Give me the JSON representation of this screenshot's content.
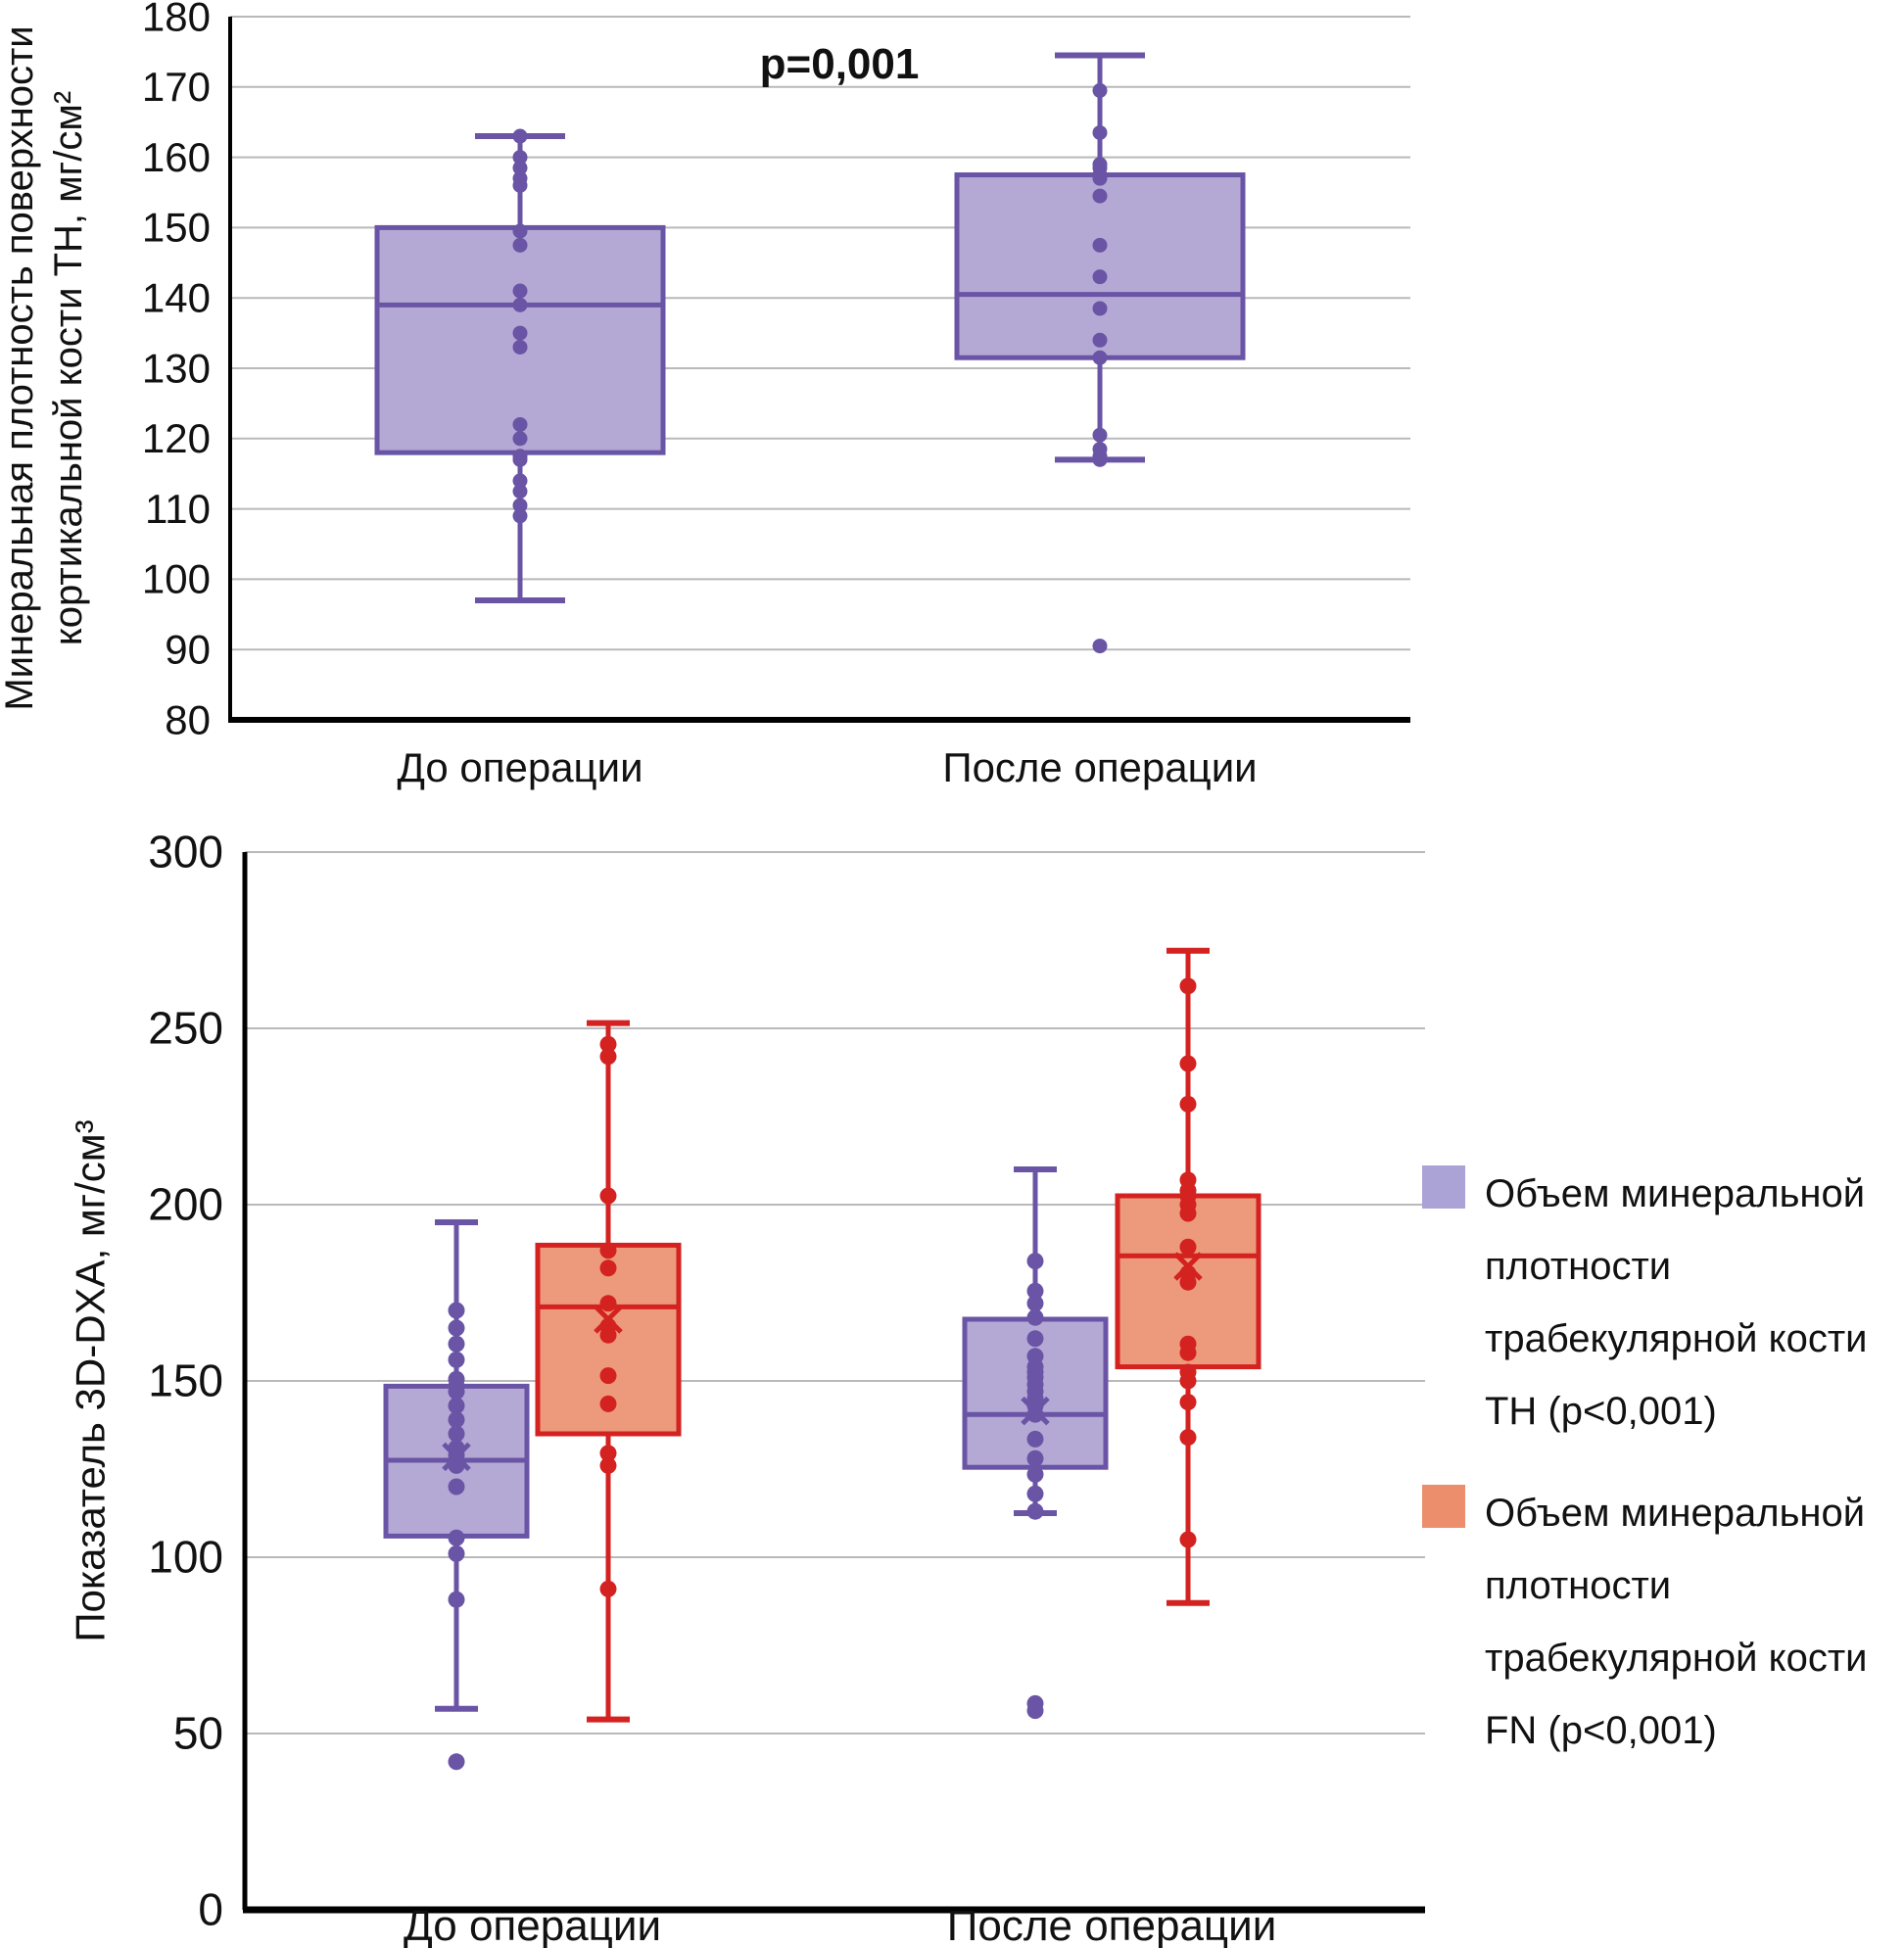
{
  "page": {
    "background": "#ffffff"
  },
  "chart_data": [
    {
      "type": "boxplot",
      "title": "",
      "ylabel_lines": [
        "Минеральная плотность поверхности",
        "кортикальной кости TH, мг/см²"
      ],
      "ylim": [
        80,
        180
      ],
      "ytick_step": 10,
      "grid": true,
      "annotation": "p=0,001",
      "categories": [
        "До операции",
        "После операции"
      ],
      "legend_position": "none",
      "series": [
        {
          "name": "Минеральная плотность поверхности кортикальной кости TH",
          "fill": "#b4a9d5",
          "stroke": "#6a54a5",
          "boxes": [
            {
              "category": "До операции",
              "whisker_low": 97,
              "q1": 118,
              "median": 139,
              "q3": 150,
              "whisker_high": 163,
              "points": [
                163,
                160,
                158.5,
                157,
                156,
                149.5,
                147.5,
                141,
                139,
                135,
                133,
                122,
                120,
                117.5,
                117,
                114,
                112.5,
                110.5,
                109
              ],
              "outliers": []
            },
            {
              "category": "После операции",
              "whisker_low": 117,
              "q1": 131.5,
              "median": 140.5,
              "q3": 157.5,
              "whisker_high": 174.5,
              "points": [
                169.5,
                163.5,
                159,
                158.5,
                157.5,
                157,
                154.5,
                147.5,
                143,
                138.5,
                134,
                131.5,
                120.5,
                118.5,
                117.5,
                117
              ],
              "outliers": [
                90.5
              ]
            }
          ]
        }
      ]
    },
    {
      "type": "boxplot",
      "title": "",
      "ylabel_lines": [
        "Показатель 3D-DXA, мг/см³"
      ],
      "ylim": [
        0,
        300
      ],
      "ytick_step": 50,
      "grid": true,
      "annotation": "",
      "categories": [
        "До операции",
        "После операции"
      ],
      "legend_position": "right",
      "series": [
        {
          "name": "Объем минеральной плотности трабекулярной кости TH (p<0,001)",
          "fill": "#b4a9d5",
          "stroke": "#6a54a5",
          "boxes": [
            {
              "category": "До операции",
              "whisker_low": 57,
              "q1": 106,
              "median": 127.5,
              "q3": 148.5,
              "whisker_high": 195,
              "mean": 128.5,
              "points": [
                170,
                165,
                160.5,
                156,
                150.5,
                148.5,
                147,
                143,
                139,
                135,
                131,
                129,
                127,
                126,
                120,
                105.5,
                101,
                88
              ],
              "outliers": [
                42
              ]
            },
            {
              "category": "После операции",
              "whisker_low": 112.5,
              "q1": 125.5,
              "median": 140.5,
              "q3": 167.5,
              "whisker_high": 210,
              "mean": 141.5,
              "points": [
                184,
                175.5,
                172,
                168,
                162,
                157,
                154,
                152.5,
                151,
                149,
                147,
                145,
                143,
                140.5,
                133.5,
                128,
                123.5,
                118,
                113
              ],
              "outliers": [
                58.5,
                56.5
              ]
            }
          ]
        },
        {
          "name": "Объем минеральной плотности трабекулярной кости FN (p<0,001)",
          "fill": "#ed9a7c",
          "stroke": "#d32220",
          "boxes": [
            {
              "category": "До операции",
              "whisker_low": 54,
              "q1": 135,
              "median": 171,
              "q3": 188.5,
              "whisker_high": 251.5,
              "mean": 167.5,
              "points": [
                245.5,
                242,
                202.5,
                187,
                182,
                172,
                165.5,
                163,
                151.5,
                143.5,
                129.5,
                126,
                91
              ],
              "outliers": []
            },
            {
              "category": "После операции",
              "whisker_low": 87,
              "q1": 154,
              "median": 185.5,
              "q3": 202.5,
              "whisker_high": 272,
              "mean": 182.5,
              "points": [
                262,
                240,
                228.5,
                207,
                204,
                202.5,
                200,
                197.5,
                188,
                180.5,
                178,
                160.5,
                158,
                152.5,
                150,
                144,
                134,
                105
              ],
              "outliers": []
            }
          ]
        }
      ],
      "legend": [
        {
          "label": "Объем минеральной плотности трабекулярной кости TH (p<0,001)",
          "color": "#aba3d6"
        },
        {
          "label": "Объем минеральной плотности трабекулярной кости FN (p<0,001)",
          "color": "#ec8e6c"
        }
      ]
    }
  ],
  "style": {
    "grid_color": "#b9b9b9",
    "axis_color": "#000000",
    "text_color": "#111111"
  }
}
